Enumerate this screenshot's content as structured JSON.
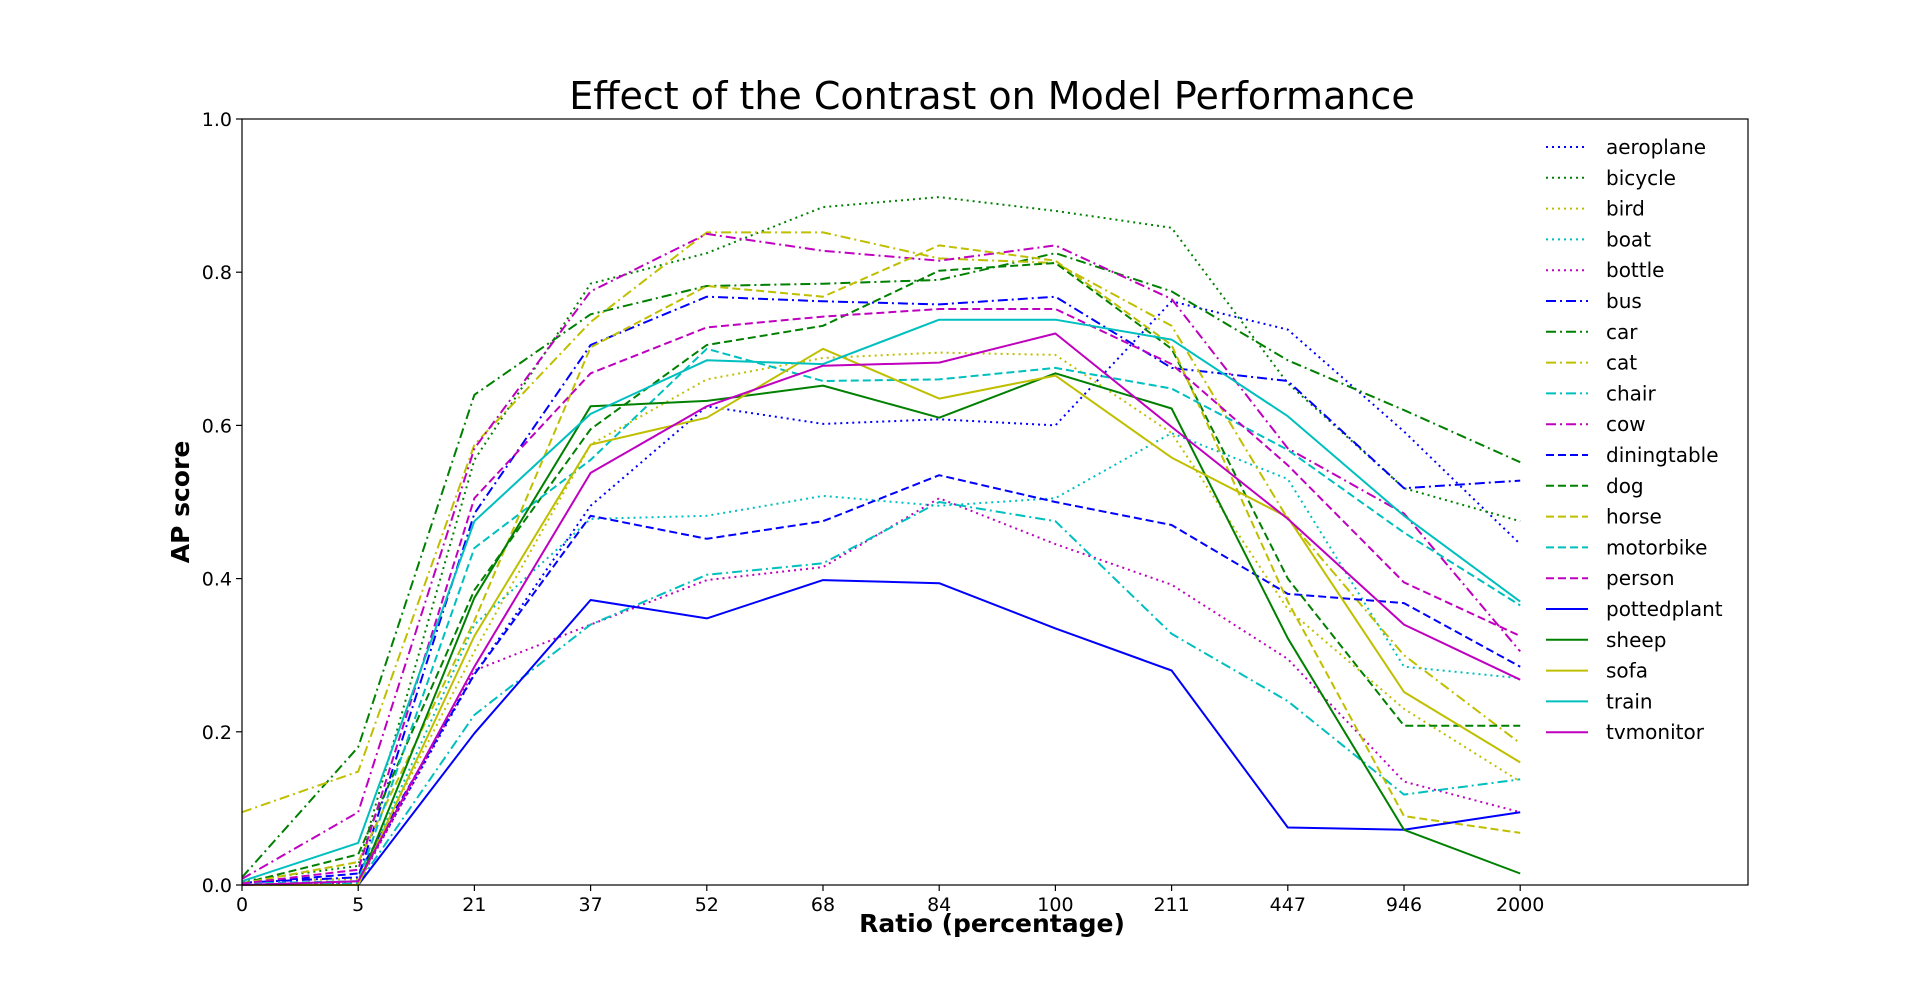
{
  "chart_data": {
    "type": "line",
    "title": "Effect of the Contrast on Model Performance",
    "xlabel": "Ratio (percentage)",
    "ylabel": "AP score",
    "categories": [
      "0",
      "5",
      "21",
      "37",
      "52",
      "68",
      "84",
      "100",
      "211",
      "447",
      "946",
      "2000"
    ],
    "yticks": [
      "0.0",
      "0.2",
      "0.4",
      "0.6",
      "0.8",
      "1.0"
    ],
    "ylim": [
      0,
      1
    ],
    "grid": false,
    "legend_position": "top-right",
    "series": [
      {
        "name": "aeroplane",
        "color": "#0000ff",
        "style": "dotted",
        "values": [
          0.0,
          0.005,
          0.275,
          0.495,
          0.625,
          0.602,
          0.608,
          0.6,
          0.762,
          0.725,
          0.592,
          0.445
        ]
      },
      {
        "name": "bicycle",
        "color": "#008000",
        "style": "dotted",
        "values": [
          0.005,
          0.025,
          0.555,
          0.785,
          0.825,
          0.885,
          0.898,
          0.88,
          0.858,
          0.655,
          0.518,
          0.475
        ]
      },
      {
        "name": "bird",
        "color": "#bfbf00",
        "style": "dotted",
        "values": [
          0.005,
          0.008,
          0.305,
          0.575,
          0.66,
          0.688,
          0.695,
          0.692,
          0.59,
          0.36,
          0.23,
          0.135
        ]
      },
      {
        "name": "boat",
        "color": "#00bfbf",
        "style": "dotted",
        "values": [
          0.005,
          0.002,
          0.34,
          0.478,
          0.482,
          0.508,
          0.495,
          0.505,
          0.59,
          0.53,
          0.285,
          0.27
        ]
      },
      {
        "name": "bottle",
        "color": "#bf00bf",
        "style": "dotted",
        "values": [
          0.0,
          0.002,
          0.28,
          0.34,
          0.398,
          0.415,
          0.505,
          0.445,
          0.392,
          0.295,
          0.135,
          0.095
        ]
      },
      {
        "name": "bus",
        "color": "#0000ff",
        "style": "dashdot",
        "values": [
          0.003,
          0.01,
          0.485,
          0.705,
          0.768,
          0.762,
          0.758,
          0.768,
          0.675,
          0.658,
          0.518,
          0.528
        ]
      },
      {
        "name": "car",
        "color": "#008000",
        "style": "dashdot",
        "values": [
          0.01,
          0.18,
          0.64,
          0.745,
          0.782,
          0.785,
          0.79,
          0.825,
          0.775,
          0.685,
          0.62,
          0.552
        ]
      },
      {
        "name": "cat",
        "color": "#bfbf00",
        "style": "dashdot",
        "values": [
          0.095,
          0.148,
          0.575,
          0.735,
          0.852,
          0.852,
          0.818,
          0.812,
          0.73,
          0.478,
          0.3,
          0.185
        ]
      },
      {
        "name": "chair",
        "color": "#00bfbf",
        "style": "dashdot",
        "values": [
          0.0,
          0.002,
          0.222,
          0.34,
          0.405,
          0.42,
          0.5,
          0.475,
          0.328,
          0.24,
          0.118,
          0.138
        ]
      },
      {
        "name": "cow",
        "color": "#bf00bf",
        "style": "dashdot",
        "values": [
          0.008,
          0.095,
          0.57,
          0.775,
          0.85,
          0.828,
          0.815,
          0.835,
          0.765,
          0.57,
          0.485,
          0.305
        ]
      },
      {
        "name": "diningtable",
        "color": "#0000ff",
        "style": "dashed",
        "values": [
          0.002,
          0.015,
          0.275,
          0.482,
          0.452,
          0.475,
          0.535,
          0.5,
          0.47,
          0.38,
          0.368,
          0.285
        ]
      },
      {
        "name": "dog",
        "color": "#008000",
        "style": "dashed",
        "values": [
          0.002,
          0.04,
          0.385,
          0.595,
          0.705,
          0.73,
          0.802,
          0.812,
          0.7,
          0.4,
          0.208,
          0.208
        ]
      },
      {
        "name": "horse",
        "color": "#bfbf00",
        "style": "dashed",
        "values": [
          0.002,
          0.03,
          0.345,
          0.702,
          0.782,
          0.768,
          0.835,
          0.815,
          0.705,
          0.37,
          0.09,
          0.068
        ]
      },
      {
        "name": "motorbike",
        "color": "#00bfbf",
        "style": "dashed",
        "values": [
          0.002,
          0.005,
          0.44,
          0.555,
          0.7,
          0.658,
          0.66,
          0.675,
          0.648,
          0.568,
          0.46,
          0.365
        ]
      },
      {
        "name": "person",
        "color": "#bf00bf",
        "style": "dashed",
        "values": [
          0.002,
          0.02,
          0.505,
          0.668,
          0.728,
          0.742,
          0.752,
          0.752,
          0.68,
          0.548,
          0.395,
          0.325
        ]
      },
      {
        "name": "pottedplant",
        "color": "#0000ff",
        "style": "solid",
        "values": [
          0.0,
          0.0,
          0.198,
          0.372,
          0.348,
          0.398,
          0.394,
          0.335,
          0.28,
          0.075,
          0.072,
          0.095
        ]
      },
      {
        "name": "sheep",
        "color": "#008000",
        "style": "solid",
        "values": [
          0.0,
          0.0,
          0.375,
          0.625,
          0.632,
          0.652,
          0.61,
          0.668,
          0.622,
          0.322,
          0.072,
          0.015
        ]
      },
      {
        "name": "sofa",
        "color": "#bfbf00",
        "style": "solid",
        "values": [
          0.0,
          0.0,
          0.325,
          0.575,
          0.61,
          0.7,
          0.635,
          0.665,
          0.558,
          0.48,
          0.252,
          0.16
        ]
      },
      {
        "name": "train",
        "color": "#00bfbf",
        "style": "solid",
        "values": [
          0.005,
          0.055,
          0.475,
          0.615,
          0.685,
          0.68,
          0.738,
          0.738,
          0.712,
          0.612,
          0.482,
          0.37
        ]
      },
      {
        "name": "tvmonitor",
        "color": "#bf00bf",
        "style": "solid",
        "values": [
          0.0,
          0.005,
          0.285,
          0.538,
          0.625,
          0.678,
          0.682,
          0.72,
          0.598,
          0.478,
          0.34,
          0.268
        ]
      }
    ]
  }
}
